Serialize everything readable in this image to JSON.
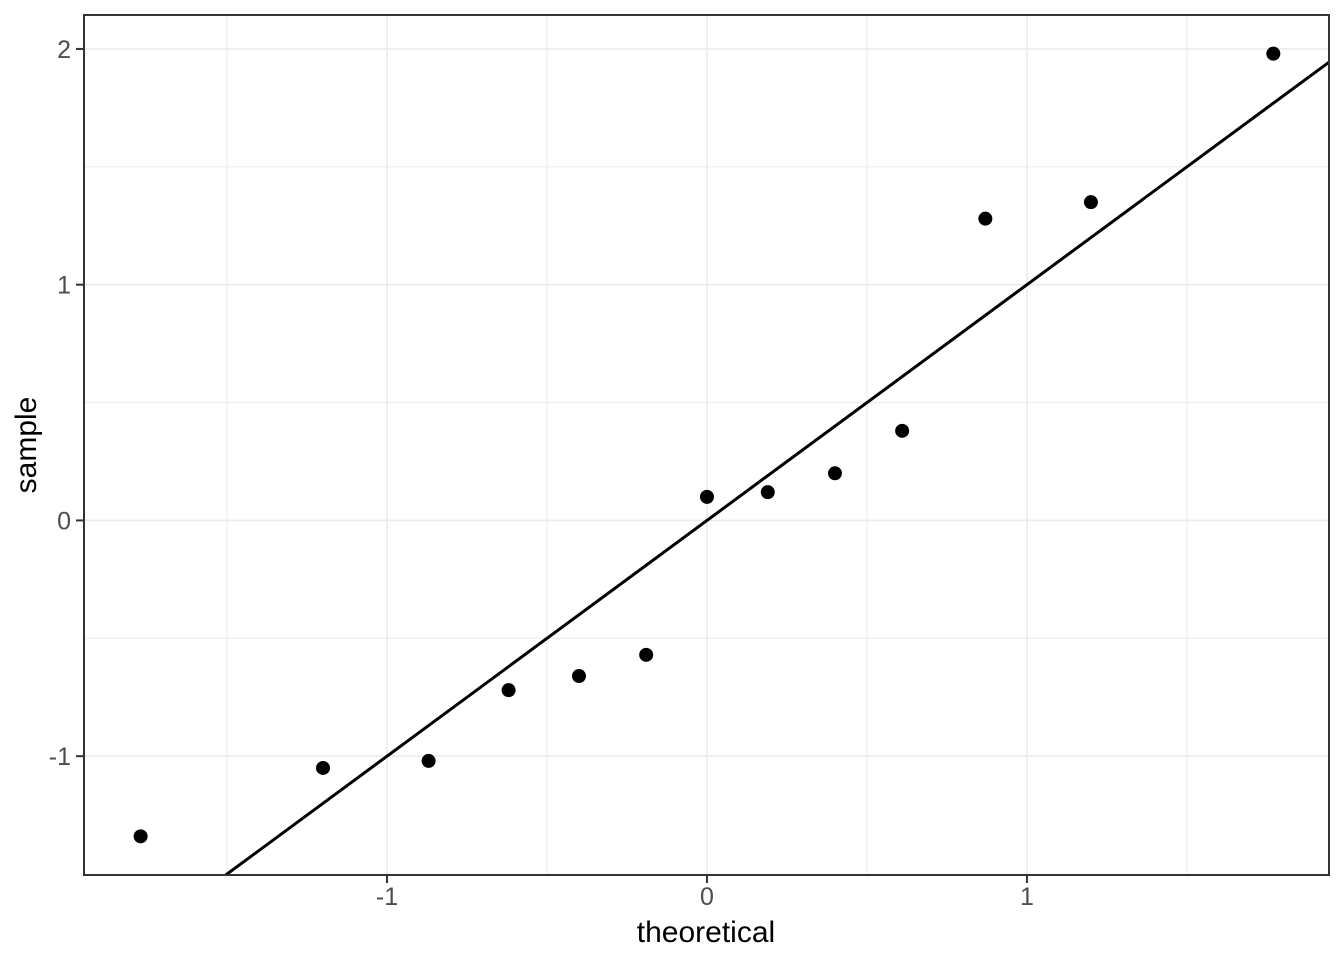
{
  "figure": {
    "kind": "qq-plot",
    "background_color": "#ffffff"
  },
  "chart_data": {
    "type": "scatter",
    "title": "",
    "xlabel": "theoretical",
    "ylabel": "sample",
    "x": [
      -1.77,
      -1.2,
      -0.87,
      -0.62,
      -0.4,
      -0.19,
      0.0,
      0.19,
      0.4,
      0.61,
      0.87,
      1.2,
      1.77
    ],
    "y": [
      -1.34,
      -1.05,
      -1.02,
      -0.72,
      -0.66,
      -0.57,
      0.1,
      0.12,
      0.2,
      0.38,
      1.28,
      1.35,
      1.98
    ],
    "series": [
      {
        "name": "sample-quantiles",
        "type": "points"
      },
      {
        "name": "qq-reference-line",
        "type": "line",
        "slope": 1.0,
        "intercept": 0.0
      }
    ],
    "xlim": [
      -1.947,
      1.944
    ],
    "ylim": [
      -1.504,
      2.144
    ],
    "x_major_ticks": [
      -1,
      0,
      1
    ],
    "y_major_ticks": [
      -1,
      0,
      1,
      2
    ],
    "x_minor_gridlines": [
      -1.5,
      -0.5,
      0.5,
      1.5
    ],
    "y_minor_gridlines": [
      -0.5,
      0.5,
      1.5
    ],
    "grid": true,
    "legend_position": "none",
    "colors": {
      "point": "#000000",
      "reference_line": "#000000",
      "grid_major": "#ebebeb",
      "grid_minor": "#ededed",
      "panel_border": "#333333",
      "tick_mark": "#333333",
      "tick_label": "#4d4d4d",
      "axis_title": "#000000",
      "panel_background": "#ffffff"
    }
  }
}
